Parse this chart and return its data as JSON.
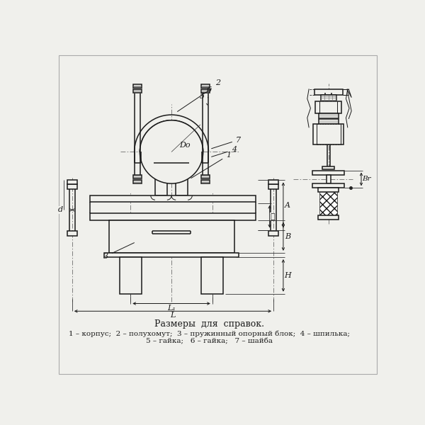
{
  "bg_color": "#f0f0ec",
  "line_color": "#1a1a1a",
  "title": "Размеры  для  справок.",
  "legend_line1": "1 – корпус;  2 – полухомут;  3 – пружинный опорный блок;  4 – шпилька;",
  "legend_line2": "5 – гайка;   6 – гайка;   7 – шайба",
  "dim_color": "#1a1a1a"
}
